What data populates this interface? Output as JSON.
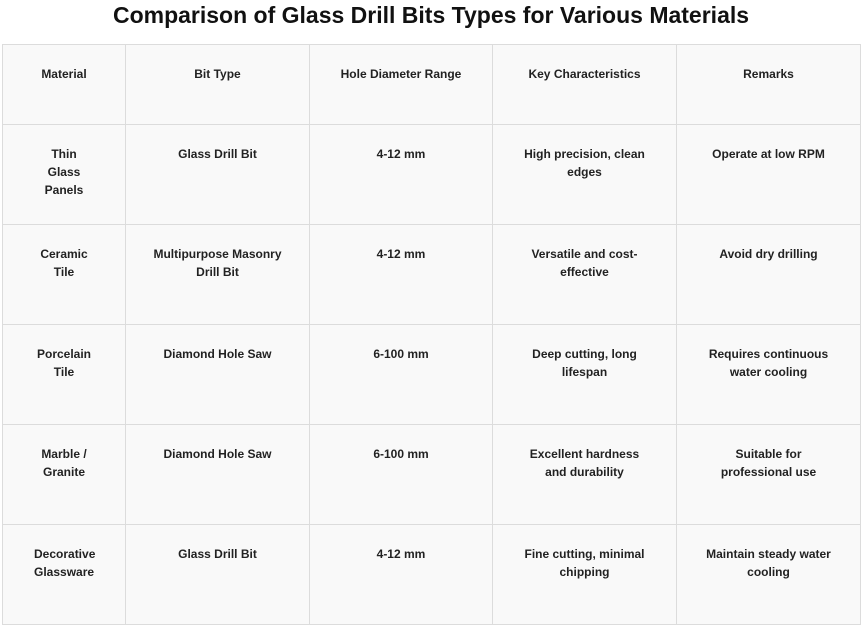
{
  "header": {
    "title": "Comparison of Glass Drill Bits Types for Various Materials"
  },
  "table": {
    "columns": [
      "Material",
      "Bit Type",
      "Hole Diameter Range",
      "Key Characteristics",
      "Remarks"
    ],
    "rows": [
      [
        "Thin Glass Panels",
        "Glass Drill Bit",
        "4-12 mm",
        "High precision, clean edges",
        "Operate at low RPM"
      ],
      [
        "Ceramic Tile",
        "Multipurpose Masonry Drill Bit",
        "4-12 mm",
        "Versatile and cost-effective",
        "Avoid dry drilling"
      ],
      [
        "Porcelain Tile",
        "Diamond Hole Saw",
        "6-100 mm",
        "Deep cutting, long lifespan",
        "Requires continuous water cooling"
      ],
      [
        "Marble / Granite",
        "Diamond Hole Saw",
        "6-100 mm",
        "Excellent hardness and durability",
        "Suitable for professional use"
      ],
      [
        "Decorative Glassware",
        "Glass Drill Bit",
        "4-12 mm",
        "Fine cutting, minimal chipping",
        "Maintain steady water cooling"
      ]
    ]
  }
}
